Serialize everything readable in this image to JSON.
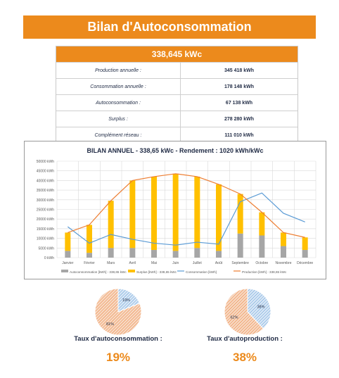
{
  "banner": {
    "title": "Bilan d'Autoconsommation"
  },
  "summary": {
    "header": "338,645 kWc",
    "rows": [
      {
        "label": "Production annuelle :",
        "value": "345 418 kWh"
      },
      {
        "label": "Consommation annuelle :",
        "value": "178 148 kWh"
      },
      {
        "label": "Autoconsommation :",
        "value": "67 138 kWh"
      },
      {
        "label": "Surplus :",
        "value": "278 280 kWh"
      },
      {
        "label": "Complément réseau :",
        "value": "111 010 kWh"
      }
    ]
  },
  "colors": {
    "accent": "#ec8a1c",
    "autoconsommation": "#a6a6a6",
    "surplus": "#ffc000",
    "consommation": "#5b9bd5",
    "production": "#ed7d31"
  },
  "chart_data": [
    {
      "type": "bar",
      "title": "BILAN ANNUEL - 338,65 kWc - Rendement : 1020 kWh/kWc",
      "categories": [
        "Janvier",
        "Février",
        "Mars",
        "Avril",
        "Mai",
        "Juin",
        "Juillet",
        "Août",
        "Septembre",
        "Octobre",
        "Novembre",
        "Décembre"
      ],
      "ylim": [
        0,
        50000
      ],
      "ytick_labels": [
        "0 kWh",
        "5000 kWh",
        "10000 kWh",
        "15000 kWh",
        "20000 kWh",
        "25000 kWh",
        "30000 kWh",
        "35000 kWh",
        "40000 kWh",
        "45000 kWh",
        "50000 kWh"
      ],
      "yticks": [
        0,
        5000,
        10000,
        15000,
        20000,
        25000,
        30000,
        35000,
        40000,
        45000,
        50000
      ],
      "grid": true,
      "legend_position": "bottom",
      "stacked": true,
      "series": [
        {
          "name": "Autoconsommation [kWh] - 338,65 kWc",
          "kind": "bar",
          "values": [
            3500,
            2500,
            5000,
            5000,
            4000,
            3500,
            5000,
            3500,
            12500,
            11500,
            6000,
            4000
          ]
        },
        {
          "name": "Surplus [kWh] - 338,65 kWc",
          "kind": "bar",
          "values": [
            9500,
            14500,
            24500,
            35000,
            38000,
            40000,
            37000,
            34500,
            20500,
            12000,
            7000,
            6500
          ]
        },
        {
          "name": "Consommation [kWh]",
          "kind": "line",
          "values": [
            16000,
            7500,
            12000,
            9500,
            7500,
            6500,
            8000,
            7000,
            29000,
            33500,
            23000,
            18500
          ]
        },
        {
          "name": "Production [kWh] - 338,65 kWc",
          "kind": "line",
          "values": [
            13000,
            17000,
            29500,
            40000,
            42000,
            43500,
            42000,
            38000,
            33000,
            23500,
            13000,
            10500
          ]
        }
      ]
    },
    {
      "type": "pie",
      "slices": [
        {
          "label": "19%",
          "value": 19,
          "color": "#5b9bd5"
        },
        {
          "label": "81%",
          "value": 81,
          "color": "#ed7d31"
        }
      ]
    },
    {
      "type": "pie",
      "slices": [
        {
          "label": "38%",
          "value": 38,
          "color": "#5b9bd5"
        },
        {
          "label": "62%",
          "value": 62,
          "color": "#ed7d31"
        }
      ]
    }
  ],
  "kpis": {
    "autoconsommation": {
      "label": "Taux d'autoconsommation :",
      "value": "19%"
    },
    "autoproduction": {
      "label": "Taux d'autoproduction :",
      "value": "38%"
    }
  }
}
